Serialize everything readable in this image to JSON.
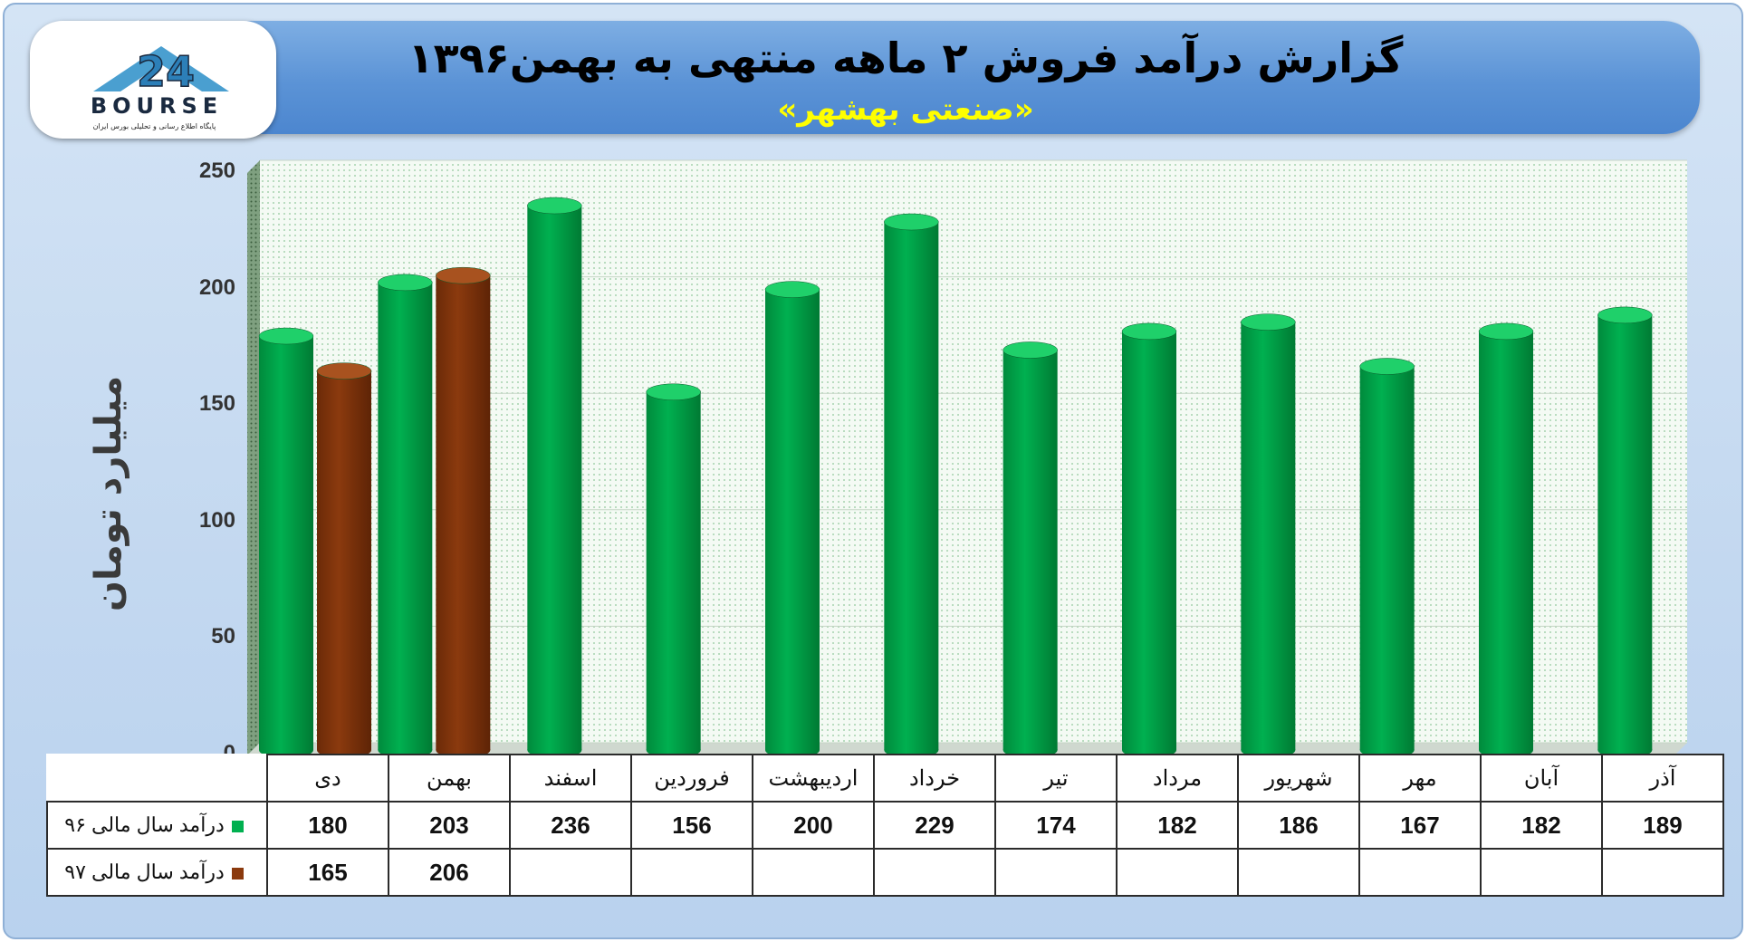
{
  "header": {
    "title": "گزارش درآمد فروش ۲ ماهه منتهی به بهمن۱۳۹۶",
    "subtitle": "«صنعتی بهشهر»"
  },
  "logo": {
    "brand": "BOURSE",
    "tagline": "پایگاه اطلاع رسانی و تحلیلی بورس ایران"
  },
  "colors": {
    "series_96": "#00b050",
    "series_97": "#8b3a0e",
    "plot_bg": "#eef6ee",
    "header": "#5b93d6",
    "subtitle": "#ffff00"
  },
  "chart_data": {
    "type": "bar",
    "ylabel": "میلیارد تومان",
    "xlabel": "",
    "ylim": [
      0,
      250
    ],
    "yticks": [
      0,
      50,
      100,
      150,
      200,
      250
    ],
    "grid": true,
    "categories": [
      "دی",
      "بهمن",
      "اسفند",
      "فروردین",
      "اردیبهشت",
      "خرداد",
      "تیر",
      "مرداد",
      "شهریور",
      "مهر",
      "آبان",
      "آذر"
    ],
    "series": [
      {
        "name": "درآمد سال مالی ۹۶",
        "values": [
          180,
          203,
          236,
          156,
          200,
          229,
          174,
          182,
          186,
          167,
          182,
          189
        ]
      },
      {
        "name": "درآمد سال مالی ۹۷",
        "values": [
          165,
          206,
          null,
          null,
          null,
          null,
          null,
          null,
          null,
          null,
          null,
          null
        ]
      }
    ]
  }
}
